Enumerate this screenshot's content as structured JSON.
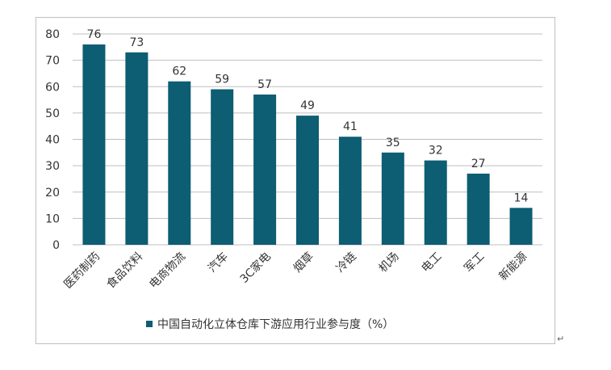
{
  "chart_data": {
    "type": "bar",
    "categories": [
      "医药制药",
      "食品饮料",
      "电商物流",
      "汽车",
      "3C家电",
      "烟草",
      "冷链",
      "机场",
      "电工",
      "军工",
      "新能源"
    ],
    "series": [
      {
        "name": "中国自动化立体仓库下游应用行业参与度（%）",
        "values": [
          76,
          73,
          62,
          59,
          57,
          49,
          41,
          35,
          32,
          27,
          14
        ]
      }
    ],
    "ylim": [
      0,
      80
    ],
    "yticks": [
      0,
      10,
      20,
      30,
      40,
      50,
      60,
      70,
      80
    ],
    "grid": true,
    "legend_position": "bottom",
    "bar_color": "#0d5d73",
    "grid_color": "#bfbfbf",
    "data_labels": true
  },
  "page": {
    "return_mark": "↵"
  }
}
